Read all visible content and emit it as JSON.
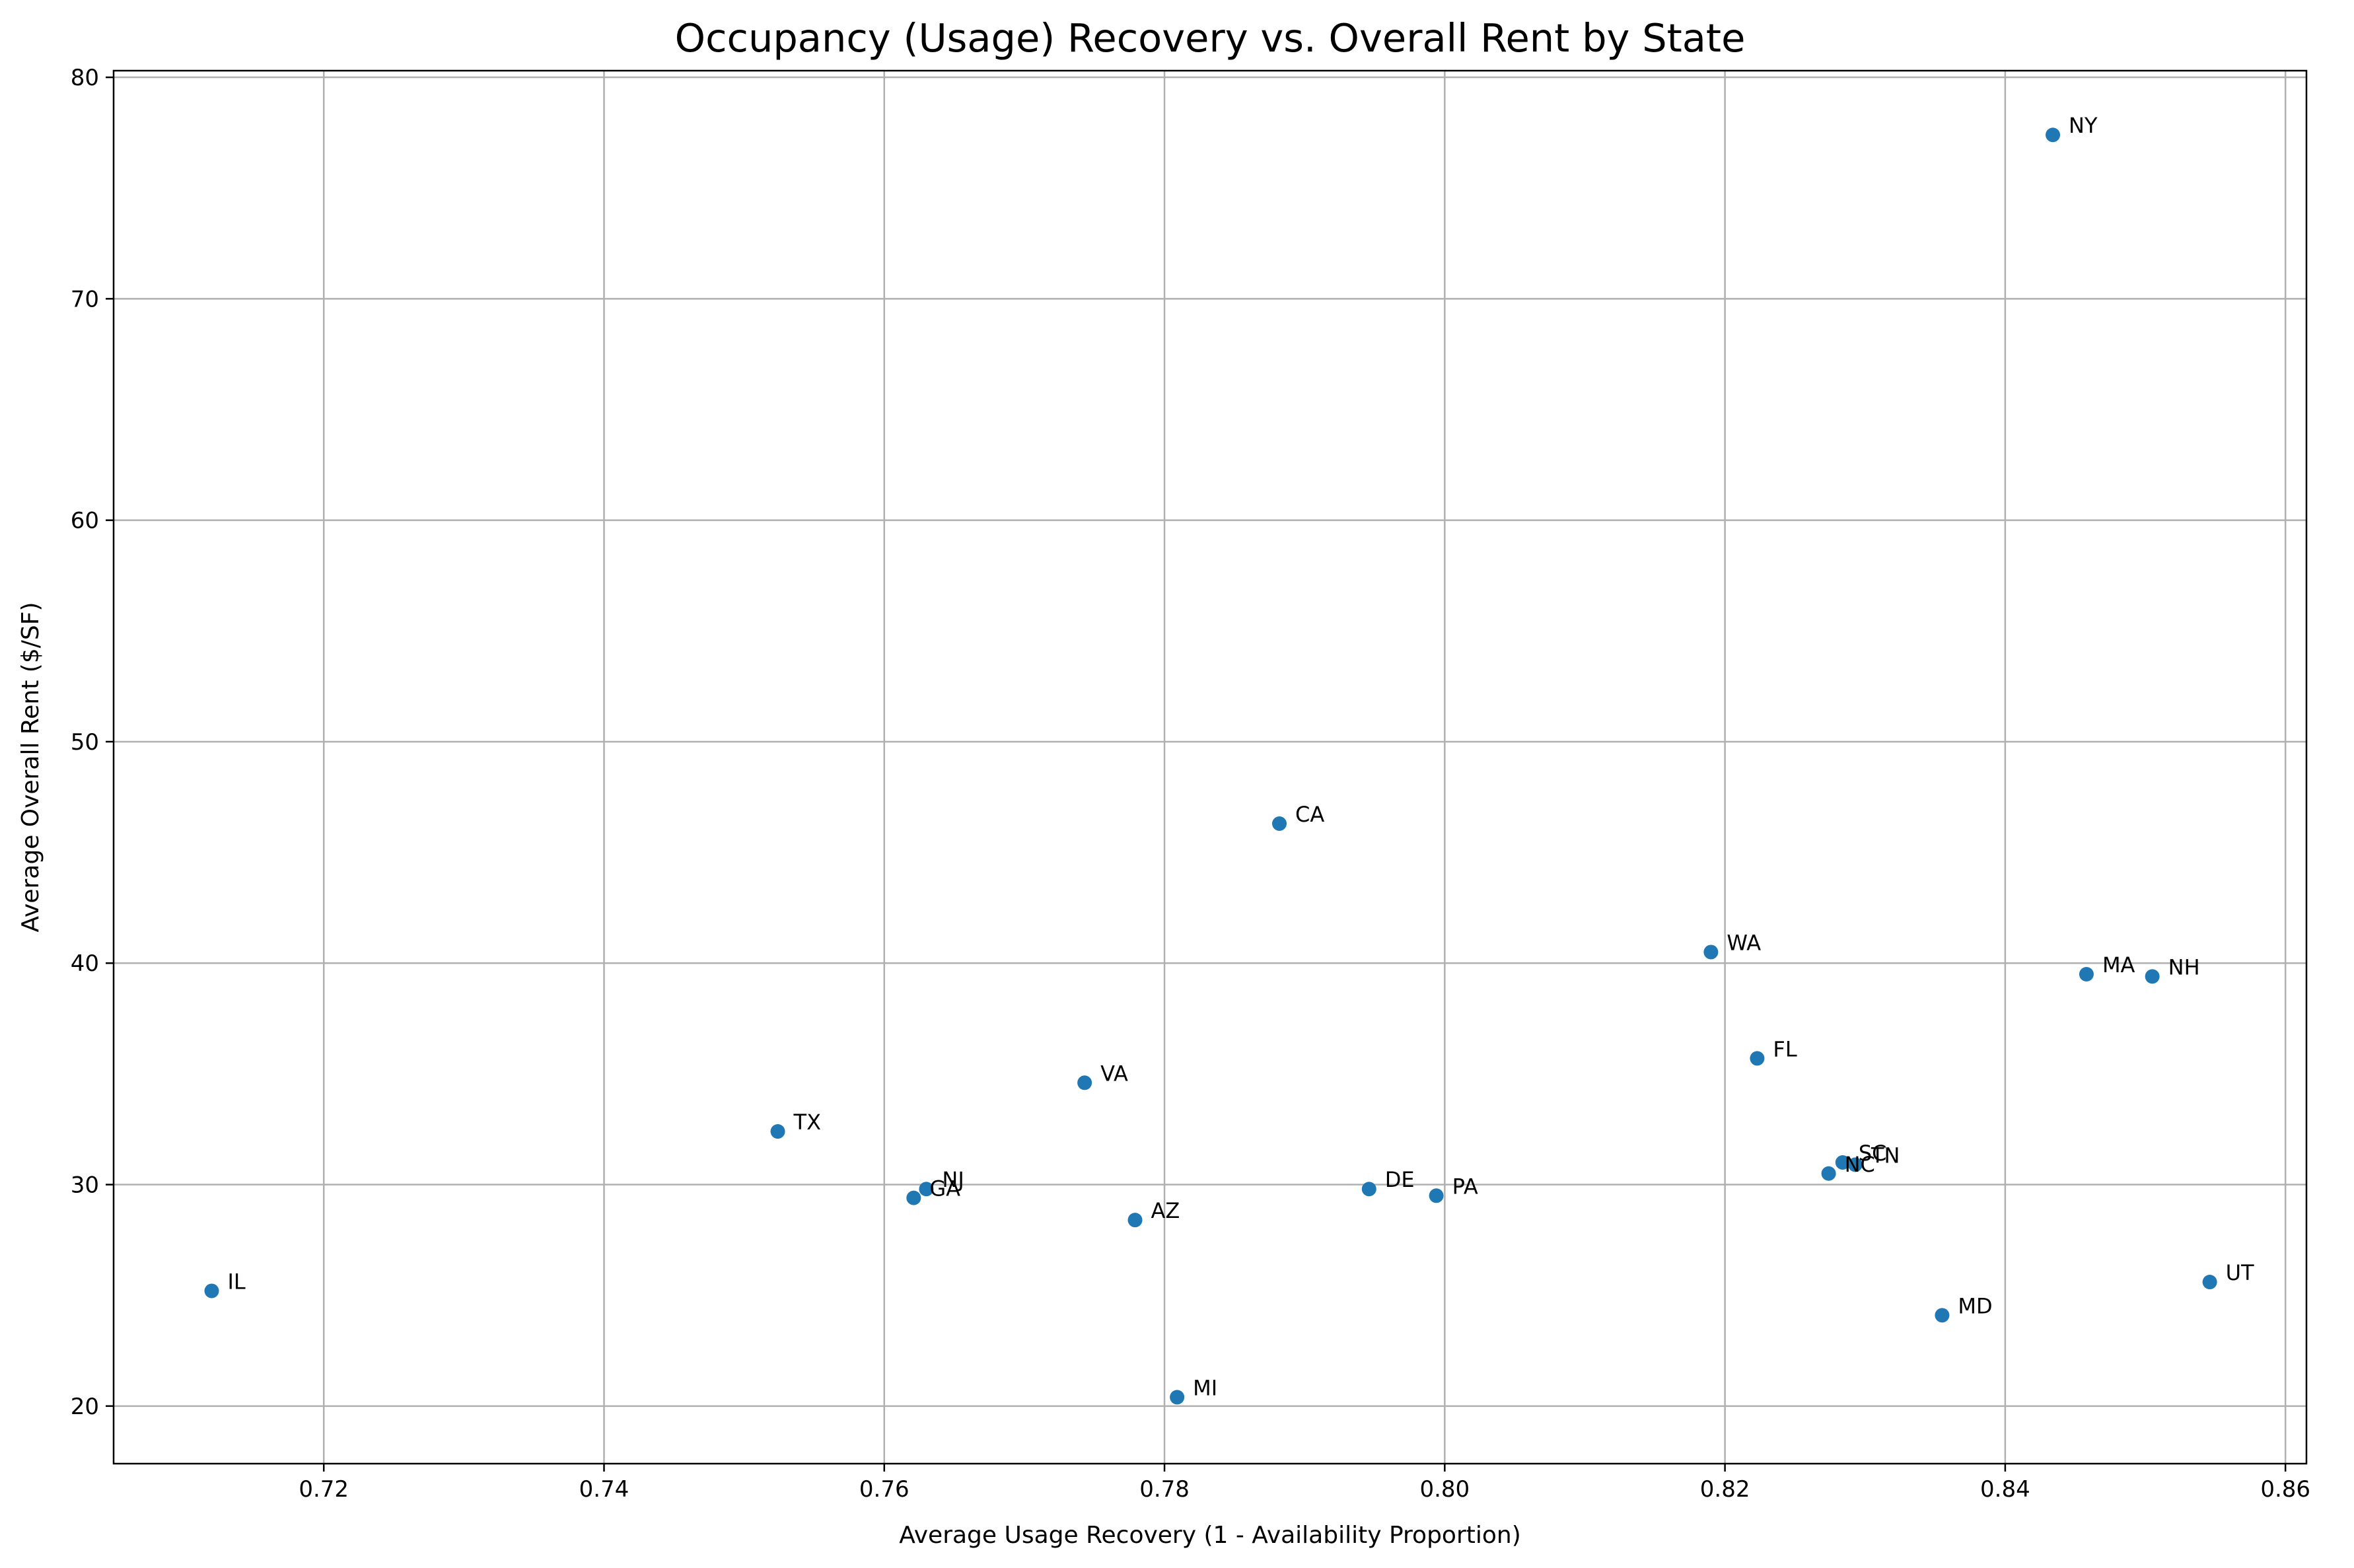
{
  "chart_data": {
    "type": "scatter",
    "title": "Occupancy (Usage) Recovery vs. Overall Rent by State",
    "xlabel": "Average Usage Recovery (1 - Availability Proportion)",
    "ylabel": "Average Overall Rent ($/SF)",
    "xlim": [
      0.705,
      0.8615
    ],
    "ylim": [
      17.4,
      80.3
    ],
    "xticks": [
      0.72,
      0.74,
      0.76,
      0.78,
      0.8,
      0.82,
      0.84,
      0.86
    ],
    "xtick_labels": [
      "0.72",
      "0.74",
      "0.76",
      "0.78",
      "0.80",
      "0.82",
      "0.84",
      "0.86"
    ],
    "yticks": [
      20,
      30,
      40,
      50,
      60,
      70,
      80
    ],
    "ytick_labels": [
      "20",
      "30",
      "40",
      "50",
      "60",
      "70",
      "80"
    ],
    "grid": true,
    "marker_color": "#1f77b4",
    "points": [
      {
        "label": "IL",
        "x": 0.712,
        "y": 25.2
      },
      {
        "label": "TX",
        "x": 0.7524,
        "y": 32.4
      },
      {
        "label": "GA",
        "x": 0.7621,
        "y": 29.4
      },
      {
        "label": "NJ",
        "x": 0.763,
        "y": 29.8
      },
      {
        "label": "VA",
        "x": 0.7743,
        "y": 34.6
      },
      {
        "label": "AZ",
        "x": 0.7779,
        "y": 28.4
      },
      {
        "label": "MI",
        "x": 0.7809,
        "y": 20.4
      },
      {
        "label": "CA",
        "x": 0.7882,
        "y": 46.3
      },
      {
        "label": "DE",
        "x": 0.7946,
        "y": 29.8
      },
      {
        "label": "PA",
        "x": 0.7994,
        "y": 29.5
      },
      {
        "label": "WA",
        "x": 0.819,
        "y": 40.5
      },
      {
        "label": "FL",
        "x": 0.8223,
        "y": 35.7
      },
      {
        "label": "NC",
        "x": 0.8274,
        "y": 30.5
      },
      {
        "label": "SC",
        "x": 0.8284,
        "y": 31.0
      },
      {
        "label": "TN",
        "x": 0.8293,
        "y": 30.9
      },
      {
        "label": "MD",
        "x": 0.8355,
        "y": 24.1
      },
      {
        "label": "NY",
        "x": 0.8434,
        "y": 77.4
      },
      {
        "label": "MA",
        "x": 0.8458,
        "y": 39.5
      },
      {
        "label": "NH",
        "x": 0.8505,
        "y": 39.4
      },
      {
        "label": "UT",
        "x": 0.8546,
        "y": 25.6
      }
    ]
  }
}
